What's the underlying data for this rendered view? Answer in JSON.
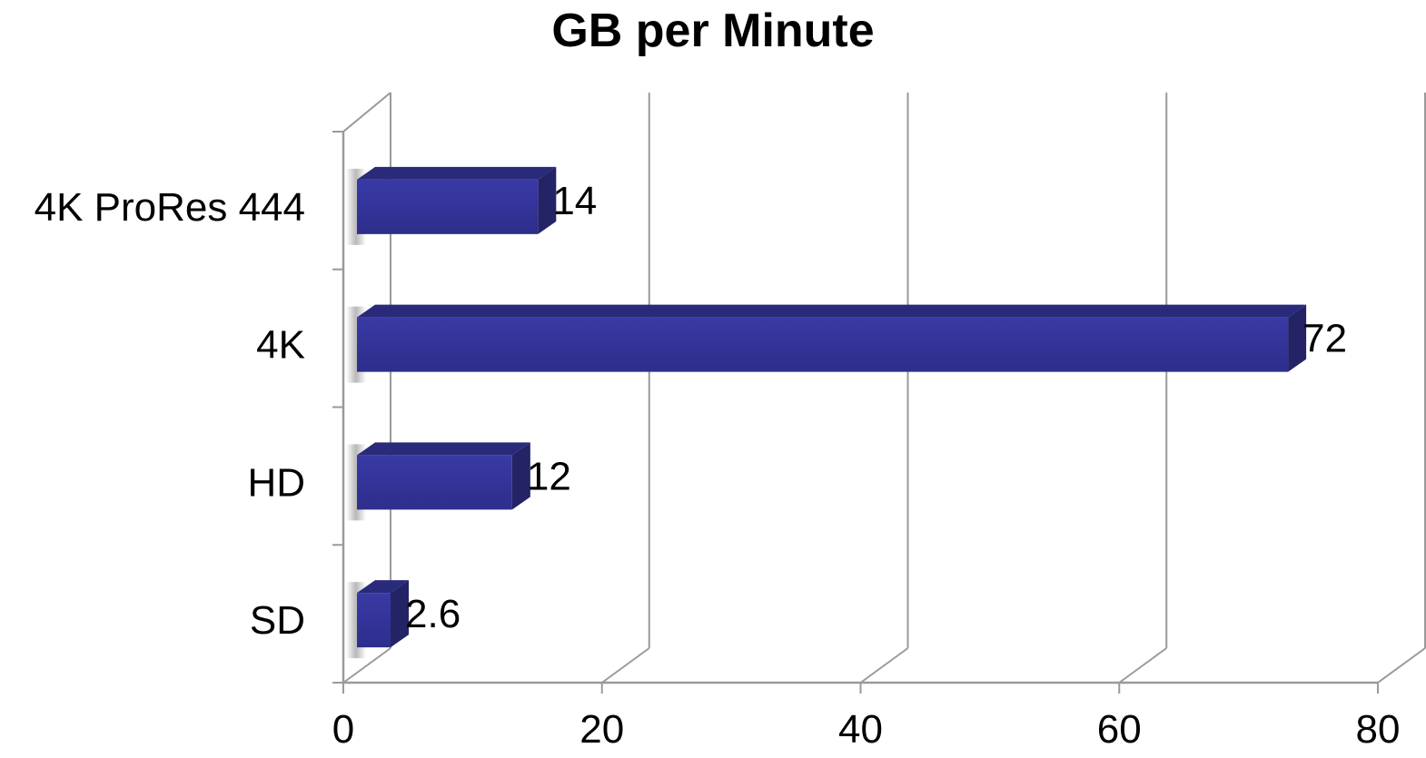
{
  "chart_data": {
    "type": "bar",
    "orientation": "horizontal",
    "style": "3d",
    "title": "GB per Minute",
    "xlabel": "",
    "ylabel": "",
    "categories": [
      "4K ProRes 444",
      "4K",
      "HD",
      "SD"
    ],
    "values": [
      14,
      72,
      12,
      2.6
    ],
    "data_labels": [
      "14",
      "72",
      "12",
      "2.6"
    ],
    "xlim": [
      0,
      80
    ],
    "x_ticks": [
      0,
      20,
      40,
      60,
      80
    ],
    "x_tick_labels": [
      "0",
      "20",
      "40",
      "60",
      "80"
    ],
    "grid": true,
    "legend": "none",
    "colors": {
      "bar_front": "#333399",
      "bar_top": "#2a2a7a",
      "bar_side": "#232366",
      "grid": "#9a9a9a"
    }
  }
}
